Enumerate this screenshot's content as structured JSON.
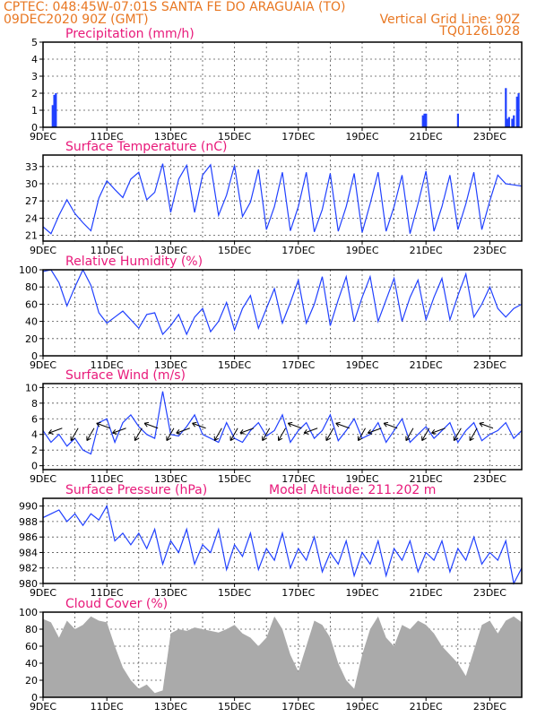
{
  "header": {
    "line1_left": "CPTEC:   048:45W-07:01S  SANTA FE DO ARAGUAIA (TO)",
    "line2_left": "09DEC2020 90Z (GMT)",
    "line2_right": "Vertical Grid Line: 90Z",
    "line3_right": "TQ0126L028"
  },
  "colors": {
    "header": "#e87722",
    "title": "#e8197a",
    "series": "#2040ff",
    "cloud": "#aaaaaa"
  },
  "chart_data": [
    {
      "type": "bar",
      "title": "Precipitation (mm/h)",
      "ylim": [
        0,
        5
      ],
      "yticks": [
        "0",
        "1",
        "2",
        "3",
        "4",
        "5"
      ],
      "xticks": [
        "9DEC",
        "11DEC",
        "13DEC",
        "15DEC",
        "17DEC",
        "19DEC",
        "21DEC",
        "23DEC"
      ],
      "x": [
        0.3,
        0.35,
        0.4,
        11.9,
        11.95,
        12.0,
        13.0,
        14.5,
        14.55,
        14.6,
        14.7,
        14.75,
        14.85,
        14.9
      ],
      "values": [
        1.3,
        1.9,
        2.0,
        0.7,
        0.8,
        0.8,
        0.8,
        2.3,
        0.5,
        0.6,
        0.5,
        0.7,
        1.8,
        2.0
      ]
    },
    {
      "type": "line",
      "title": "Surface Temperature (nC)",
      "ylim": [
        20,
        35
      ],
      "yticks": [
        "21",
        "24",
        "27",
        "30",
        "33"
      ],
      "xticks": [
        "9DEC",
        "11DEC",
        "13DEC",
        "15DEC",
        "17DEC",
        "19DEC",
        "21DEC",
        "23DEC"
      ],
      "x": [
        0,
        0.25,
        0.5,
        0.75,
        1.0,
        1.25,
        1.5,
        1.75,
        2.0,
        2.25,
        2.5,
        2.75,
        3.0,
        3.25,
        3.5,
        3.75,
        4.0,
        4.25,
        4.5,
        4.75,
        5.0,
        5.25,
        5.5,
        5.75,
        6.0,
        6.25,
        6.5,
        6.75,
        7.0,
        7.25,
        7.5,
        7.75,
        8.0,
        8.25,
        8.5,
        8.75,
        9.0,
        9.25,
        9.5,
        9.75,
        10.0,
        10.25,
        10.5,
        10.75,
        11.0,
        11.25,
        11.5,
        11.75,
        12.0,
        12.25,
        12.5,
        12.75,
        13.0,
        13.25,
        13.5,
        13.75,
        14.0,
        14.25,
        14.5,
        14.75,
        15.0
      ],
      "values": [
        22.5,
        21.3,
        24.5,
        27.2,
        24.8,
        23.2,
        21.8,
        27.5,
        30.5,
        29.0,
        27.6,
        30.8,
        32.0,
        27.2,
        28.5,
        33.5,
        25.0,
        30.8,
        33.2,
        25.0,
        31.5,
        33.3,
        24.5,
        28.0,
        33.2,
        24.3,
        26.8,
        32.5,
        22.0,
        26.0,
        32.0,
        21.8,
        26.0,
        32.0,
        21.6,
        25.5,
        31.8,
        21.7,
        26.0,
        31.8,
        21.5,
        26.5,
        32.0,
        21.7,
        26.0,
        31.5,
        21.3,
        26.5,
        32.2,
        21.7,
        26.0,
        31.5,
        22.0,
        26.5,
        32.0,
        22.0,
        27.0,
        31.5,
        30.0,
        29.8,
        29.6
      ],
      "grid": true
    },
    {
      "type": "line",
      "title": "Relative Humidity (%)",
      "ylim": [
        0,
        100
      ],
      "yticks": [
        "0",
        "20",
        "40",
        "60",
        "80",
        "100"
      ],
      "xticks": [
        "9DEC",
        "11DEC",
        "13DEC",
        "15DEC",
        "17DEC",
        "19DEC",
        "21DEC",
        "23DEC"
      ],
      "x": [
        0,
        0.25,
        0.5,
        0.75,
        1.0,
        1.25,
        1.5,
        1.75,
        2.0,
        2.25,
        2.5,
        2.75,
        3.0,
        3.25,
        3.5,
        3.75,
        4.0,
        4.25,
        4.5,
        4.75,
        5.0,
        5.25,
        5.5,
        5.75,
        6.0,
        6.25,
        6.5,
        6.75,
        7.0,
        7.25,
        7.5,
        7.75,
        8.0,
        8.25,
        8.5,
        8.75,
        9.0,
        9.25,
        9.5,
        9.75,
        10.0,
        10.25,
        10.5,
        10.75,
        11.0,
        11.25,
        11.5,
        11.75,
        12.0,
        12.25,
        12.5,
        12.75,
        13.0,
        13.25,
        13.5,
        13.75,
        14.0,
        14.25,
        14.5,
        14.75,
        15.0
      ],
      "values": [
        98,
        100,
        85,
        58,
        80,
        100,
        82,
        50,
        38,
        45,
        52,
        42,
        32,
        48,
        50,
        25,
        35,
        48,
        25,
        45,
        55,
        28,
        40,
        62,
        30,
        55,
        70,
        32,
        55,
        78,
        38,
        62,
        88,
        38,
        60,
        92,
        35,
        65,
        92,
        40,
        68,
        92,
        40,
        65,
        90,
        40,
        68,
        88,
        42,
        68,
        90,
        42,
        70,
        95,
        45,
        60,
        80,
        55,
        45,
        55,
        60
      ],
      "grid": true
    },
    {
      "type": "line",
      "title": "Surface Wind (m/s)",
      "ylim": [
        -0.5,
        10.5
      ],
      "yticks": [
        "0",
        "2",
        "4",
        "6",
        "8",
        "10"
      ],
      "xticks": [
        "9DEC",
        "11DEC",
        "13DEC",
        "15DEC",
        "17DEC",
        "19DEC",
        "21DEC",
        "23DEC"
      ],
      "x": [
        0,
        0.25,
        0.5,
        0.75,
        1.0,
        1.25,
        1.5,
        1.75,
        2.0,
        2.25,
        2.5,
        2.75,
        3.0,
        3.25,
        3.5,
        3.75,
        4.0,
        4.25,
        4.5,
        4.75,
        5.0,
        5.25,
        5.5,
        5.75,
        6.0,
        6.25,
        6.5,
        6.75,
        7.0,
        7.25,
        7.5,
        7.75,
        8.0,
        8.25,
        8.5,
        8.75,
        9.0,
        9.25,
        9.5,
        9.75,
        10.0,
        10.25,
        10.5,
        10.75,
        11.0,
        11.25,
        11.5,
        11.75,
        12.0,
        12.25,
        12.5,
        12.75,
        13.0,
        13.25,
        13.5,
        13.75,
        14.0,
        14.25,
        14.5,
        14.75,
        15.0
      ],
      "values": [
        4.5,
        3.0,
        4.0,
        2.5,
        3.5,
        2.0,
        1.5,
        5.5,
        6.0,
        3.0,
        5.5,
        6.5,
        5.0,
        4.0,
        3.5,
        9.5,
        4.0,
        3.8,
        5.0,
        6.5,
        4.0,
        3.5,
        3.0,
        5.5,
        3.5,
        3.0,
        4.5,
        5.5,
        3.8,
        4.5,
        6.5,
        3.0,
        4.5,
        5.5,
        3.5,
        4.5,
        6.5,
        3.2,
        4.5,
        6.0,
        3.5,
        4.0,
        5.5,
        3.0,
        4.5,
        6.0,
        3.0,
        4.0,
        5.0,
        3.5,
        4.5,
        5.5,
        3.0,
        4.5,
        5.5,
        3.2,
        4.0,
        4.5,
        5.5,
        3.5,
        4.5
      ],
      "grid": true
    },
    {
      "type": "line",
      "title": "Surface Pressure (hPa)",
      "annotation": "Model Altitude: 211.202  m",
      "ylim": [
        980,
        991
      ],
      "yticks": [
        "980",
        "982",
        "984",
        "986",
        "988",
        "990"
      ],
      "xticks": [
        "9DEC",
        "11DEC",
        "13DEC",
        "15DEC",
        "17DEC",
        "19DEC",
        "21DEC",
        "23DEC"
      ],
      "x": [
        0,
        0.25,
        0.5,
        0.75,
        1.0,
        1.25,
        1.5,
        1.75,
        2.0,
        2.25,
        2.5,
        2.75,
        3.0,
        3.25,
        3.5,
        3.75,
        4.0,
        4.25,
        4.5,
        4.75,
        5.0,
        5.25,
        5.5,
        5.75,
        6.0,
        6.25,
        6.5,
        6.75,
        7.0,
        7.25,
        7.5,
        7.75,
        8.0,
        8.25,
        8.5,
        8.75,
        9.0,
        9.25,
        9.5,
        9.75,
        10.0,
        10.25,
        10.5,
        10.75,
        11.0,
        11.25,
        11.5,
        11.75,
        12.0,
        12.25,
        12.5,
        12.75,
        13.0,
        13.25,
        13.5,
        13.75,
        14.0,
        14.25,
        14.5,
        14.75,
        15.0
      ],
      "values": [
        988.5,
        989.0,
        989.5,
        988.0,
        989.0,
        987.5,
        989.0,
        988.2,
        990.0,
        985.5,
        986.5,
        985.0,
        986.5,
        984.5,
        987.0,
        982.5,
        985.5,
        984.0,
        987.0,
        982.5,
        985.0,
        984.0,
        987.0,
        981.8,
        985.0,
        983.5,
        986.5,
        981.8,
        984.5,
        983.0,
        986.5,
        982.0,
        984.5,
        983.0,
        986.0,
        981.5,
        984.0,
        982.5,
        985.5,
        981.0,
        984.0,
        982.5,
        985.5,
        981.0,
        984.5,
        983.0,
        985.5,
        981.5,
        984.0,
        983.0,
        985.5,
        981.5,
        984.5,
        983.0,
        986.0,
        982.5,
        984.0,
        983.0,
        985.5,
        980.0,
        982.0
      ],
      "grid": true
    },
    {
      "type": "area",
      "title": "Cloud Cover (%)",
      "ylim": [
        0,
        100
      ],
      "yticks": [
        "0",
        "20",
        "40",
        "60",
        "80",
        "100"
      ],
      "xticks": [
        "9DEC",
        "11DEC",
        "13DEC",
        "15DEC",
        "17DEC",
        "19DEC",
        "21DEC",
        "23DEC"
      ],
      "x": [
        0,
        0.25,
        0.5,
        0.75,
        1.0,
        1.25,
        1.5,
        1.75,
        2.0,
        2.25,
        2.5,
        2.75,
        3.0,
        3.25,
        3.5,
        3.75,
        4.0,
        4.25,
        4.5,
        4.75,
        5.0,
        5.25,
        5.5,
        5.75,
        6.0,
        6.25,
        6.5,
        6.75,
        7.0,
        7.25,
        7.5,
        7.75,
        8.0,
        8.25,
        8.5,
        8.75,
        9.0,
        9.25,
        9.5,
        9.75,
        10.0,
        10.25,
        10.5,
        10.75,
        11.0,
        11.25,
        11.5,
        11.75,
        12.0,
        12.25,
        12.5,
        12.75,
        13.0,
        13.25,
        13.5,
        13.75,
        14.0,
        14.25,
        14.5,
        14.75,
        15.0
      ],
      "values": [
        92,
        88,
        70,
        90,
        80,
        85,
        95,
        90,
        88,
        60,
        35,
        20,
        10,
        15,
        5,
        8,
        75,
        80,
        78,
        82,
        80,
        78,
        76,
        80,
        85,
        75,
        70,
        60,
        70,
        95,
        80,
        50,
        30,
        60,
        90,
        85,
        70,
        40,
        20,
        10,
        50,
        80,
        95,
        70,
        60,
        85,
        80,
        90,
        85,
        75,
        60,
        50,
        40,
        25,
        55,
        85,
        90,
        75,
        90,
        95,
        88
      ],
      "grid": true
    }
  ]
}
